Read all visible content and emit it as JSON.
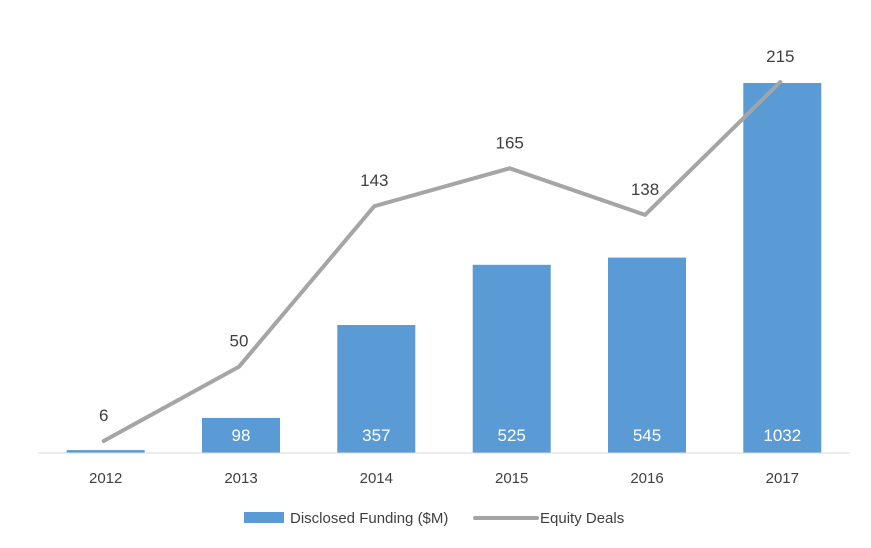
{
  "chart_data": {
    "type": "bar",
    "categories": [
      "2012",
      "2013",
      "2014",
      "2015",
      "2016",
      "2017"
    ],
    "series": [
      {
        "name": "Disclosed Funding ($M)",
        "type": "bar",
        "axis": "primary",
        "values": [
          8,
          98,
          357,
          525,
          545,
          1032
        ],
        "labels": [
          "",
          "98",
          "357",
          "525",
          "545",
          "1032"
        ],
        "color": "#5b9bd5"
      },
      {
        "name": "Equity Deals",
        "type": "line",
        "axis": "secondary",
        "values": [
          6,
          50,
          143,
          165,
          138,
          215
        ],
        "labels": [
          "6",
          "50",
          "143",
          "165",
          "138",
          "215"
        ],
        "color": "#a5a5a5"
      }
    ],
    "title": "",
    "xlabel": "",
    "ylabel": "",
    "ylim_primary": [
      0,
      1032
    ],
    "ylim_secondary": [
      0,
      215
    ],
    "grid": false,
    "legend": "bottom",
    "axis_color": "#d9d9d9"
  }
}
